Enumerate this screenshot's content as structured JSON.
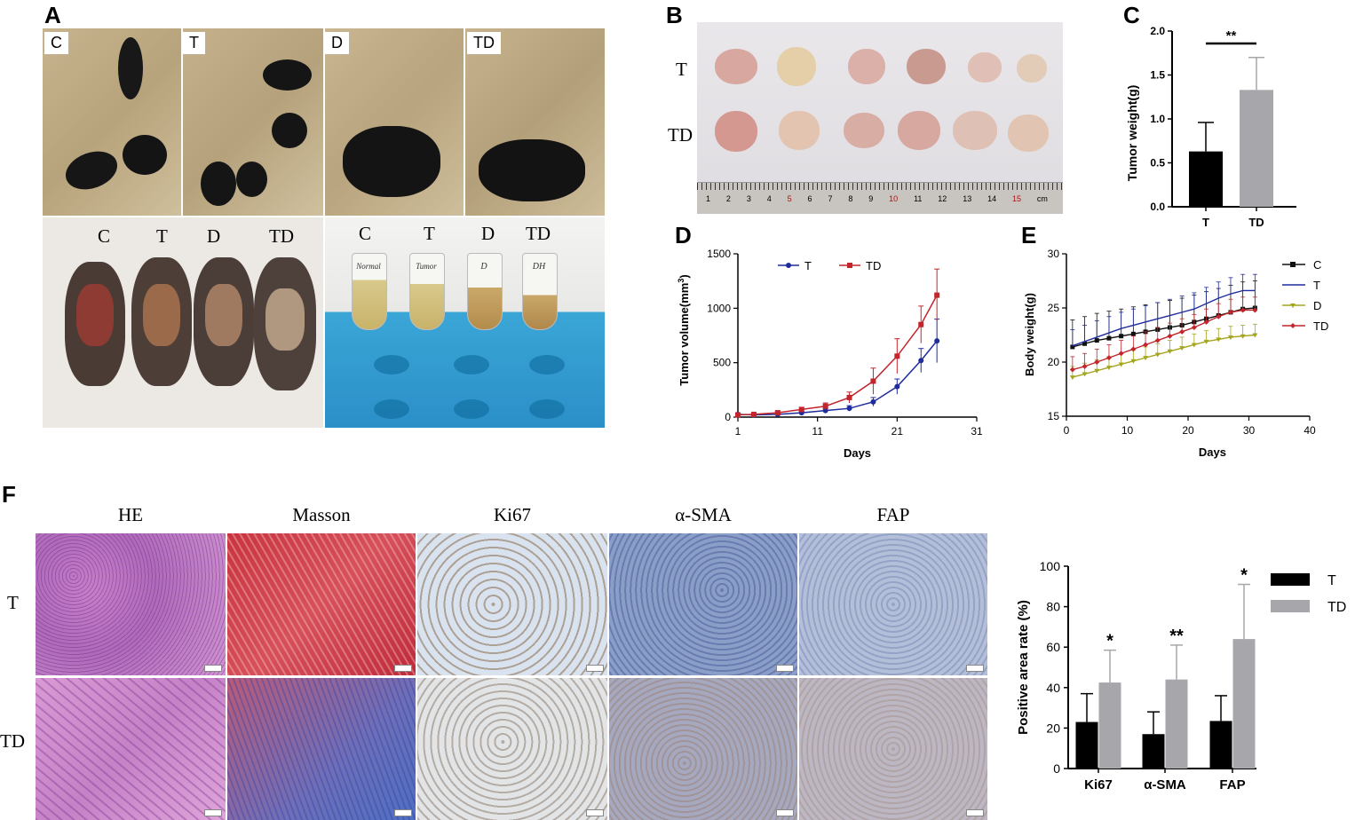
{
  "panels": {
    "a": "A",
    "b": "B",
    "c": "C",
    "d": "D",
    "e": "E",
    "f": "F"
  },
  "colors": {
    "T": "#1f2c9c",
    "TD": "#c2252c",
    "C": "#111111",
    "D": "#a5a520",
    "bar_T": "#000000",
    "bar_TD": "#a7a7ab"
  },
  "panel_a": {
    "cage_labels": [
      "C",
      "T",
      "D",
      "TD"
    ],
    "mouse_labels": [
      "C",
      "T",
      "D",
      "TD"
    ],
    "tube_labels": [
      "C",
      "T",
      "D",
      "TD"
    ],
    "tube_writing": [
      "Normal",
      "Tumor",
      "D",
      "DH"
    ]
  },
  "panel_b": {
    "row_labels": [
      "T",
      "TD"
    ],
    "ruler_numbers": [
      "1",
      "2",
      "3",
      "4",
      "5",
      "6",
      "7",
      "8",
      "9",
      "10",
      "11",
      "12",
      "13",
      "14",
      "15"
    ],
    "ruler_unit": "cm"
  },
  "chart_data": [
    {
      "id": "C",
      "type": "bar",
      "categories": [
        "T",
        "TD"
      ],
      "values": [
        0.63,
        1.33
      ],
      "errors": [
        0.33,
        0.37
      ],
      "ylabel": "Tumor weight(g)",
      "ylim": [
        0,
        2.0
      ],
      "yticks": [
        "0.0",
        "0.5",
        "1.0",
        "1.5",
        "2.0"
      ],
      "annotations": [
        {
          "between": [
            "T",
            "TD"
          ],
          "text": "**"
        }
      ]
    },
    {
      "id": "D",
      "type": "line",
      "xlabel": "Days",
      "ylabel": "Tumor volume(mm3)",
      "xlim": [
        1,
        31
      ],
      "ylim": [
        0,
        1500
      ],
      "xticks": [
        "1",
        "11",
        "21",
        "31"
      ],
      "yticks": [
        "0",
        "500",
        "1000",
        "1500"
      ],
      "legend": [
        "T",
        "TD"
      ],
      "legend_position": "top",
      "series": [
        {
          "name": "T",
          "x": [
            1,
            3,
            6,
            9,
            12,
            15,
            18,
            21,
            24,
            26
          ],
          "y": [
            25,
            20,
            25,
            40,
            60,
            80,
            140,
            280,
            520,
            700
          ],
          "err": [
            10,
            10,
            10,
            15,
            20,
            25,
            40,
            70,
            110,
            200
          ]
        },
        {
          "name": "TD",
          "x": [
            1,
            3,
            6,
            9,
            12,
            15,
            18,
            21,
            24,
            26
          ],
          "y": [
            20,
            25,
            40,
            70,
            100,
            180,
            330,
            560,
            850,
            1120
          ],
          "err": [
            10,
            10,
            15,
            20,
            30,
            50,
            120,
            160,
            170,
            240
          ]
        }
      ]
    },
    {
      "id": "E",
      "type": "line",
      "xlabel": "Days",
      "ylabel": "Body weight(g)",
      "xlim": [
        0,
        40
      ],
      "ylim": [
        15,
        30
      ],
      "xticks": [
        "0",
        "10",
        "20",
        "30",
        "40"
      ],
      "yticks": [
        "15",
        "20",
        "25",
        "30"
      ],
      "legend": [
        "C",
        "T",
        "D",
        "TD"
      ],
      "legend_position": "right",
      "series": [
        {
          "name": "C",
          "x": [
            1,
            3,
            5,
            7,
            9,
            11,
            13,
            15,
            17,
            19,
            21,
            23,
            25,
            27,
            29,
            31
          ],
          "y": [
            21.4,
            21.7,
            22.0,
            22.2,
            22.4,
            22.6,
            22.8,
            23.0,
            23.2,
            23.4,
            23.7,
            24.0,
            24.3,
            24.6,
            24.9,
            25.0
          ],
          "err": [
            2.5,
            2.5,
            2.5,
            2.5,
            2.5,
            2.5,
            2.5,
            2.5,
            2.5,
            2.5,
            2.5,
            2.5,
            2.5,
            2.5,
            2.5,
            2.5
          ]
        },
        {
          "name": "T",
          "x": [
            1,
            3,
            5,
            7,
            9,
            11,
            13,
            15,
            17,
            19,
            21,
            23,
            25,
            27,
            29,
            31
          ],
          "y": [
            21.5,
            21.9,
            22.3,
            22.7,
            23.1,
            23.4,
            23.7,
            24.0,
            24.3,
            24.6,
            24.9,
            25.4,
            25.9,
            26.3,
            26.6,
            26.6
          ],
          "err": [
            1.5,
            1.5,
            1.5,
            1.5,
            1.5,
            1.5,
            1.5,
            1.5,
            1.5,
            1.5,
            1.5,
            1.5,
            1.5,
            1.5,
            1.5,
            1.5
          ]
        },
        {
          "name": "D",
          "x": [
            1,
            3,
            5,
            7,
            9,
            11,
            13,
            15,
            17,
            19,
            21,
            23,
            25,
            27,
            29,
            31
          ],
          "y": [
            18.6,
            18.9,
            19.2,
            19.5,
            19.8,
            20.1,
            20.4,
            20.7,
            21.0,
            21.3,
            21.6,
            21.9,
            22.1,
            22.3,
            22.4,
            22.5
          ],
          "err": [
            1.0,
            1.0,
            1.0,
            1.0,
            1.0,
            1.0,
            1.0,
            1.0,
            1.0,
            1.0,
            1.0,
            1.0,
            1.0,
            1.0,
            1.0,
            1.0
          ]
        },
        {
          "name": "TD",
          "x": [
            1,
            3,
            5,
            7,
            9,
            11,
            13,
            15,
            17,
            19,
            21,
            23,
            25,
            27,
            29,
            31
          ],
          "y": [
            19.3,
            19.6,
            20.0,
            20.4,
            20.8,
            21.2,
            21.6,
            22.0,
            22.4,
            22.8,
            23.2,
            23.7,
            24.2,
            24.6,
            24.8,
            24.8
          ],
          "err": [
            1.2,
            1.2,
            1.2,
            1.2,
            1.2,
            1.2,
            1.2,
            1.2,
            1.2,
            1.2,
            1.2,
            1.2,
            1.2,
            1.2,
            1.2,
            1.2
          ]
        }
      ]
    },
    {
      "id": "F",
      "type": "bar",
      "categories": [
        "Ki67",
        "α-SMA",
        "FAP"
      ],
      "series": [
        {
          "name": "T",
          "values": [
            23,
            17,
            23.5
          ],
          "errors": [
            14,
            11,
            12.5
          ]
        },
        {
          "name": "TD",
          "values": [
            42.5,
            44,
            64
          ],
          "errors": [
            16,
            17,
            27
          ]
        }
      ],
      "ylabel": "Positive area rate (%)",
      "ylim": [
        0,
        100
      ],
      "yticks": [
        "0",
        "20",
        "40",
        "60",
        "80",
        "100"
      ],
      "legend": [
        "T",
        "TD"
      ],
      "legend_position": "top-right",
      "annotations": [
        {
          "category": "Ki67",
          "text": "*"
        },
        {
          "category": "α-SMA",
          "text": "**"
        },
        {
          "category": "FAP",
          "text": "*"
        }
      ]
    }
  ],
  "panel_f": {
    "stain_labels": [
      "HE",
      "Masson",
      "Ki67",
      "α-SMA",
      "FAP"
    ],
    "row_labels": [
      "T",
      "TD"
    ]
  }
}
